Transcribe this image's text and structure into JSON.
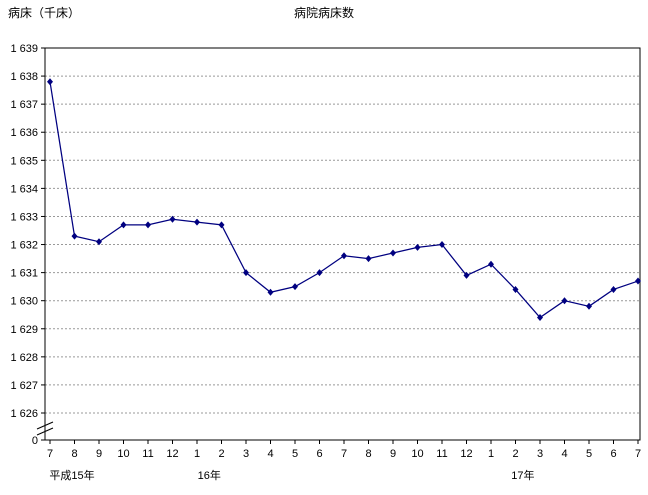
{
  "chart_data": {
    "type": "line",
    "title": "病院病床数",
    "ylabel": "病床（千床）",
    "x_labels": [
      "7",
      "8",
      "9",
      "10",
      "11",
      "12",
      "1",
      "2",
      "3",
      "4",
      "5",
      "6",
      "7",
      "8",
      "9",
      "10",
      "11",
      "12",
      "1",
      "2",
      "3",
      "4",
      "5",
      "6",
      "7"
    ],
    "year_labels": [
      {
        "label": "平成15年",
        "index": 0.9
      },
      {
        "label": "16年",
        "index": 6.5
      },
      {
        "label": "17年",
        "index": 19.3
      }
    ],
    "values": [
      1637.8,
      1632.3,
      1632.1,
      1632.7,
      1632.7,
      1632.9,
      1632.8,
      1632.7,
      1631.0,
      1630.3,
      1630.5,
      1631.0,
      1631.6,
      1631.5,
      1631.7,
      1631.9,
      1632.0,
      1630.9,
      1631.3,
      1630.4,
      1629.4,
      1630.0,
      1629.8,
      1630.4,
      1630.7
    ],
    "ylim": [
      1626,
      1639
    ],
    "y_tick_labels": [
      "1 639",
      "1 638",
      "1 637",
      "1 636",
      "1 635",
      "1 634",
      "1 633",
      "1 632",
      "1 631",
      "1 630",
      "1 629",
      "1 628",
      "1 627",
      "1 626"
    ],
    "y_axis_zero_label": "0",
    "axis_break": true,
    "grid": "horizontal-dashed",
    "grid_color": "#999999",
    "axis_color": "#000000",
    "line_color": "#000080",
    "marker": "diamond",
    "legend": "none"
  }
}
